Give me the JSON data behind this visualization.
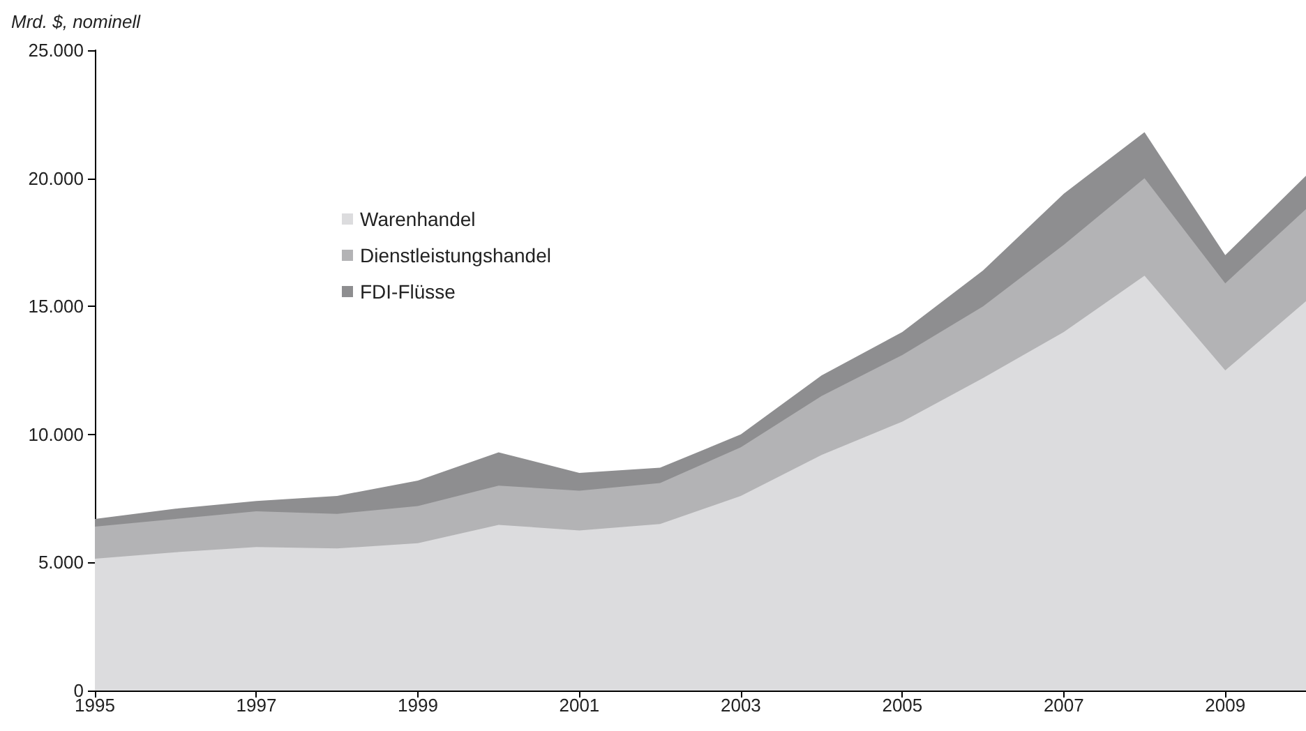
{
  "chart_data": {
    "type": "area",
    "stacked": true,
    "ylabel": "Mrd. $, nominell",
    "x": [
      1995,
      1996,
      1997,
      1998,
      1999,
      2000,
      2001,
      2002,
      2003,
      2004,
      2005,
      2006,
      2007,
      2008,
      2009,
      2010
    ],
    "series": [
      {
        "name": "Warenhandel",
        "color": "#dcdcde",
        "values": [
          5150,
          5400,
          5600,
          5550,
          5750,
          6470,
          6250,
          6500,
          7600,
          9200,
          10500,
          12200,
          14000,
          16200,
          12500,
          15200
        ]
      },
      {
        "name": "Dienstleistungshandel",
        "color": "#b3b3b5",
        "values": [
          1250,
          1300,
          1400,
          1350,
          1450,
          1530,
          1550,
          1600,
          1900,
          2300,
          2600,
          2800,
          3400,
          3800,
          3400,
          3600
        ]
      },
      {
        "name": "FDI-Flüsse",
        "color": "#8e8e90",
        "values": [
          300,
          400,
          400,
          700,
          1000,
          1300,
          700,
          600,
          500,
          800,
          900,
          1400,
          2000,
          1800,
          1100,
          1300
        ]
      }
    ],
    "xlim": [
      1995,
      2010
    ],
    "xticks": [
      1995,
      1997,
      1999,
      2001,
      2003,
      2005,
      2007,
      2009
    ],
    "ylim": [
      0,
      25000
    ],
    "yticks": [
      {
        "value": 0,
        "label": "0"
      },
      {
        "value": 5000,
        "label": "5.000"
      },
      {
        "value": 10000,
        "label": "10.000"
      },
      {
        "value": 15000,
        "label": "15.000"
      },
      {
        "value": 20000,
        "label": "20.000"
      },
      {
        "value": 25000,
        "label": "25.000"
      }
    ],
    "grid": false,
    "legend": "top left",
    "marker": "none"
  }
}
